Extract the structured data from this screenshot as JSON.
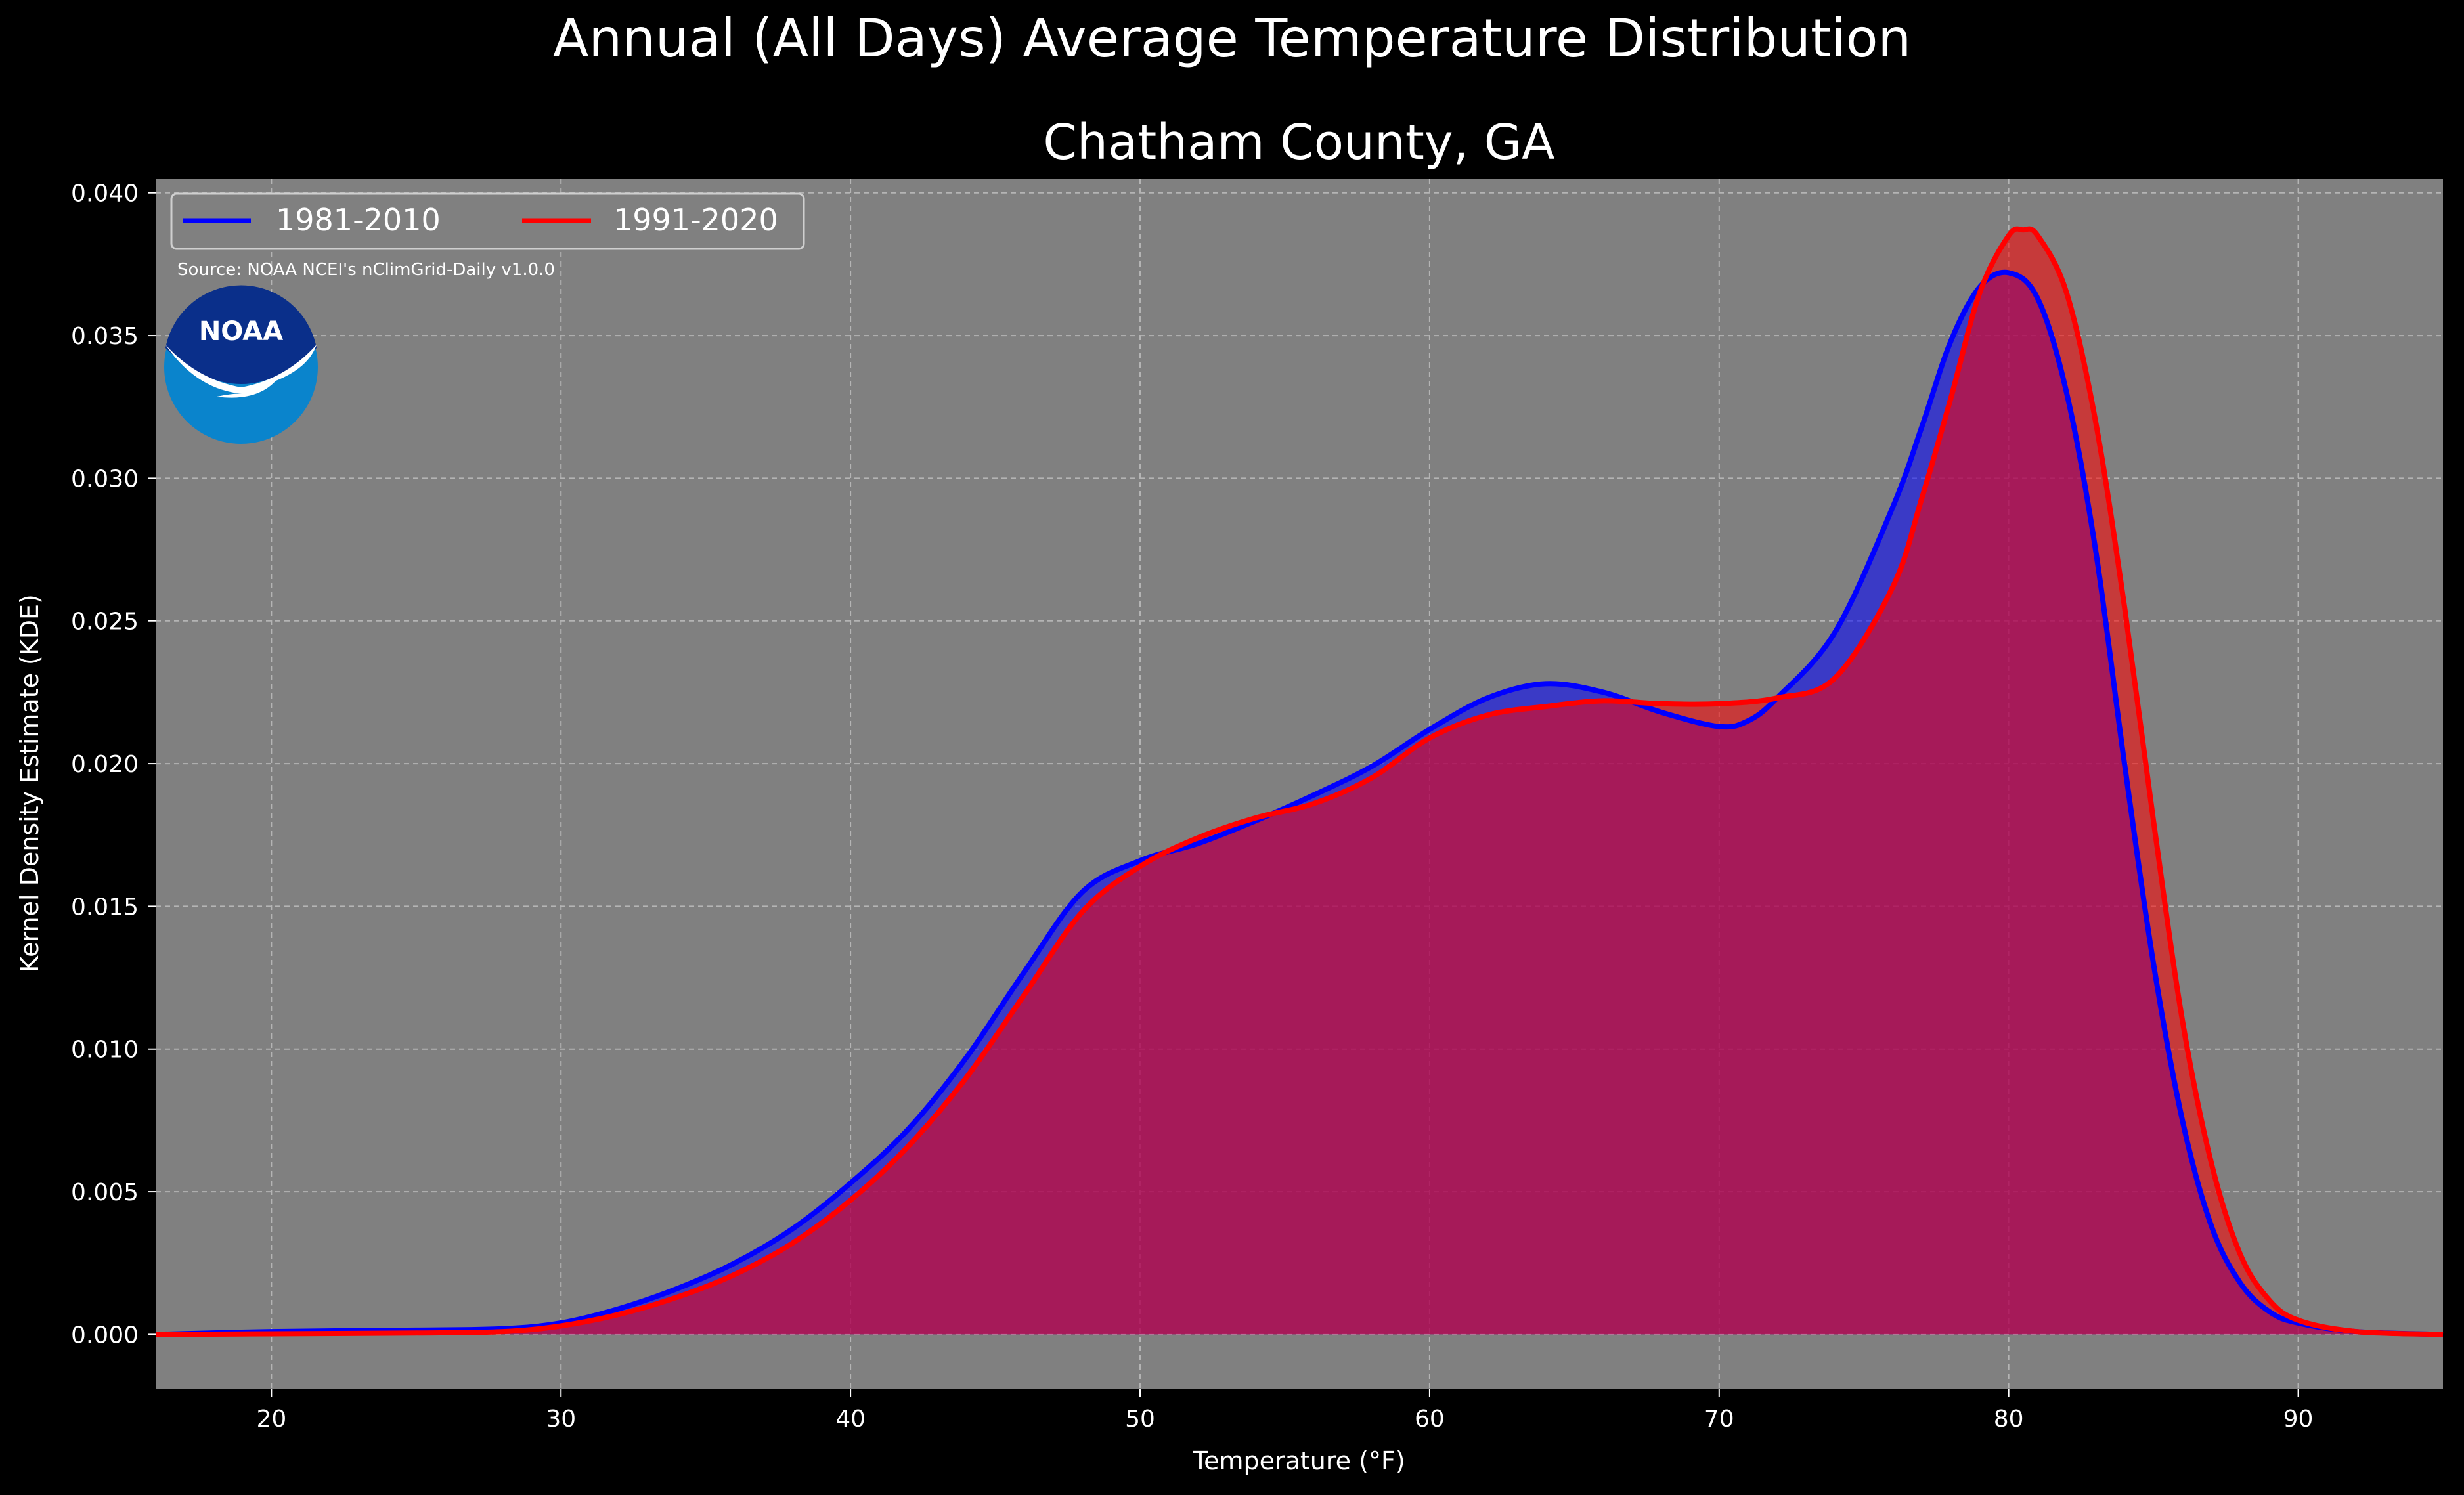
{
  "chart_data": {
    "type": "area",
    "suptitle": "Annual (All Days) Average Temperature Distribution",
    "title": "Chatham County, GA",
    "xlabel": "Temperature (°F)",
    "ylabel": "Kernel Density Estimate (KDE)",
    "xlim": [
      16,
      95
    ],
    "ylim": [
      -0.0019,
      0.0405
    ],
    "xticks": [
      "20",
      "30",
      "40",
      "50",
      "60",
      "70",
      "80",
      "90"
    ],
    "yticks": [
      "0.000",
      "0.005",
      "0.010",
      "0.015",
      "0.020",
      "0.025",
      "0.030",
      "0.035",
      "0.040"
    ],
    "grid": true,
    "legend_position": "top-left",
    "source": "Source: NOAA NCEI's nClimGrid-Daily v1.0.0",
    "logo": {
      "text": "NOAA",
      "icon": "noaa-logo-icon"
    },
    "colors": {
      "background": "#000000",
      "plot_bg": "#808080",
      "series1": "#0000ff",
      "series2": "#ff0000",
      "overlap": "#9c1e5c"
    },
    "series": [
      {
        "name": "1981-2010",
        "color": "#0000ff",
        "x": [
          16,
          20,
          25,
          28,
          30,
          32,
          34,
          36,
          38,
          40,
          42,
          44,
          46,
          48,
          50,
          52,
          54,
          56,
          58,
          60,
          62,
          64,
          66,
          68,
          70,
          71,
          72,
          74,
          76,
          77,
          78,
          79,
          80,
          81,
          82,
          83,
          84,
          85,
          86,
          87,
          88,
          89,
          90,
          92,
          95
        ],
        "y": [
          0.0,
          0.0001,
          0.00015,
          0.0002,
          0.0004,
          0.0009,
          0.0016,
          0.0025,
          0.0037,
          0.0053,
          0.0072,
          0.0097,
          0.0127,
          0.0155,
          0.0166,
          0.0172,
          0.018,
          0.0189,
          0.0199,
          0.0212,
          0.0223,
          0.0228,
          0.0225,
          0.0218,
          0.0213,
          0.0215,
          0.0223,
          0.0246,
          0.029,
          0.0318,
          0.0348,
          0.0367,
          0.0372,
          0.0363,
          0.033,
          0.0275,
          0.02,
          0.013,
          0.0075,
          0.0038,
          0.0018,
          0.0008,
          0.0004,
          0.0001,
          0.0
        ]
      },
      {
        "name": "1991-2020",
        "color": "#ff0000",
        "x": [
          16,
          20,
          25,
          28,
          30,
          32,
          34,
          36,
          38,
          40,
          42,
          44,
          46,
          48,
          50,
          52,
          54,
          56,
          58,
          60,
          62,
          64,
          66,
          68,
          70,
          72,
          74,
          76,
          77,
          78,
          79,
          80,
          80.5,
          81,
          82,
          83,
          84,
          85,
          86,
          87,
          88,
          89,
          90,
          92,
          95
        ],
        "y": [
          0.0,
          2e-05,
          5e-05,
          0.0001,
          0.0003,
          0.0007,
          0.0013,
          0.0021,
          0.0032,
          0.0047,
          0.0066,
          0.009,
          0.0119,
          0.0148,
          0.0164,
          0.0174,
          0.0181,
          0.0186,
          0.0195,
          0.0209,
          0.0217,
          0.022,
          0.0222,
          0.0221,
          0.0221,
          0.0223,
          0.023,
          0.0262,
          0.0293,
          0.0328,
          0.0365,
          0.0385,
          0.0387,
          0.0385,
          0.0365,
          0.032,
          0.0255,
          0.018,
          0.011,
          0.006,
          0.0028,
          0.0012,
          0.0005,
          0.0001,
          0.0
        ]
      }
    ]
  }
}
